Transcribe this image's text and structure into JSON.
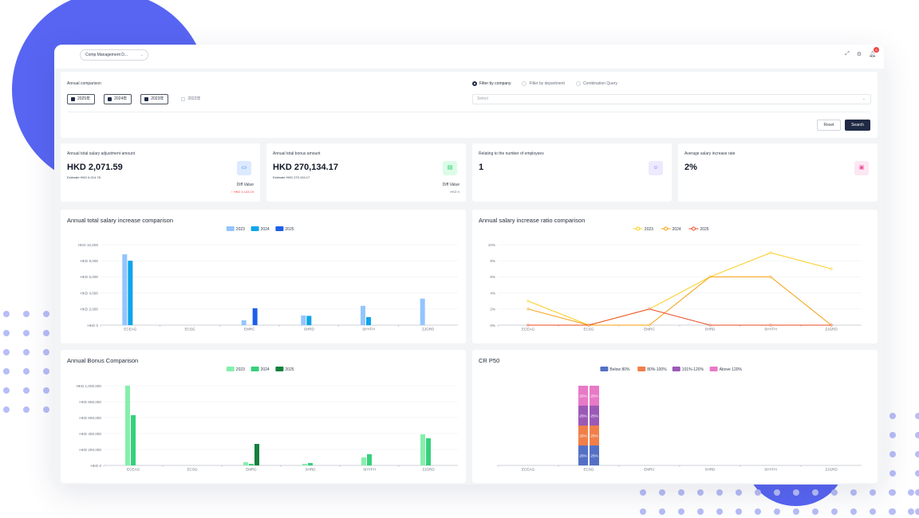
{
  "header": {
    "company_select": "Comp Management D...",
    "notification_count": "6"
  },
  "filter": {
    "annual_label": "Annual comparison",
    "years": [
      {
        "label": "2025年",
        "checked": true
      },
      {
        "label": "2024年",
        "checked": true
      },
      {
        "label": "2023年",
        "checked": true
      },
      {
        "label": "2022年",
        "checked": false
      }
    ],
    "modes": [
      {
        "label": "Filter by company",
        "selected": true
      },
      {
        "label": "Filter by department",
        "selected": false
      },
      {
        "label": "Combination Query",
        "selected": false
      }
    ],
    "select_placeholder": "Select",
    "reset_label": "Reset",
    "search_label": "Search"
  },
  "stats": [
    {
      "label": "Annual total salary adjustment amount",
      "value": "HKD 2,071.59",
      "estimate": "Estimate HKD 6,214.78",
      "diff_label": "Diff Value",
      "diff_value": "↑ HKD 4,143.19",
      "icon": "wallet-icon",
      "icon_bg": "#dbeafe",
      "icon_color": "#3b82f6"
    },
    {
      "label": "Annual total bonus amount",
      "value": "HKD 270,134.17",
      "estimate": "Estimate HKD 270,134.17",
      "diff_label": "Diff Value",
      "diff_value": "HKD 0",
      "icon": "folder-icon",
      "icon_bg": "#dcfce7",
      "icon_color": "#22c55e"
    },
    {
      "label": "Relating to the number of employees",
      "value": "1",
      "icon": "user-icon",
      "icon_bg": "#ede9fe",
      "icon_color": "#8b5cf6"
    },
    {
      "label": "Average salary increase rate",
      "value": "2%",
      "icon": "percent-icon",
      "icon_bg": "#fce7f3",
      "icon_color": "#ec4899"
    }
  ],
  "chart_data": [
    {
      "type": "bar",
      "title": "Annual total salary increase comparison",
      "categories": [
        "ECEAG",
        "ECSG",
        "EMRC",
        "SHRD",
        "SHYFH",
        "ZJGRD"
      ],
      "series": [
        {
          "name": "2023",
          "color": "#93c5fd",
          "values": [
            8800,
            0,
            600,
            1200,
            2400,
            3300
          ]
        },
        {
          "name": "2024",
          "color": "#0ea5e9",
          "values": [
            8000,
            0,
            0,
            1150,
            1000,
            0
          ]
        },
        {
          "name": "2025",
          "color": "#1d5fe8",
          "values": [
            0,
            0,
            2100,
            0,
            0,
            0
          ]
        }
      ],
      "ylim": [
        0,
        10000
      ],
      "yticks": [
        "HKD 0",
        "HKD 2,000",
        "HKD 4,000",
        "HKD 6,000",
        "HKD 8,000",
        "HKD 10,000"
      ],
      "legend": "top-center"
    },
    {
      "type": "line",
      "title": "Annual salary increase ratio comparison",
      "categories": [
        "ECEAG",
        "ECSG",
        "EMRC",
        "SHRD",
        "SHYFH",
        "ZJGRD"
      ],
      "series": [
        {
          "name": "2023",
          "color": "#facc15",
          "values": [
            3,
            0,
            2,
            6,
            9,
            7
          ]
        },
        {
          "name": "2024",
          "color": "#f59e0b",
          "values": [
            2,
            0,
            0,
            6,
            6,
            0
          ]
        },
        {
          "name": "2025",
          "color": "#ea4a1f",
          "values": [
            0,
            0,
            2,
            0,
            0,
            0
          ]
        }
      ],
      "ylim": [
        0,
        10
      ],
      "yticks": [
        "0%",
        "2%",
        "4%",
        "6%",
        "8%",
        "10%"
      ],
      "legend": "top-center"
    },
    {
      "type": "bar",
      "title": "Annual Bonus Comparison",
      "categories": [
        "ECEAG",
        "ECSG",
        "EMRC",
        "SHRD",
        "SHYFH",
        "ZJGRD"
      ],
      "series": [
        {
          "name": "2023",
          "color": "#86efac",
          "values": [
            1000000,
            0,
            40000,
            20000,
            100000,
            390000
          ]
        },
        {
          "name": "2024",
          "color": "#34d17b",
          "values": [
            630000,
            0,
            20000,
            30000,
            140000,
            340000
          ]
        },
        {
          "name": "2025",
          "color": "#15803d",
          "values": [
            0,
            0,
            270000,
            0,
            0,
            0
          ]
        }
      ],
      "ylim": [
        0,
        1000000
      ],
      "yticks": [
        "HKD 0",
        "HKD 200,000",
        "HKD 400,000",
        "HKD 600,000",
        "HKD 800,000",
        "HKD 1,000,000"
      ],
      "legend": "top-center"
    },
    {
      "type": "bar",
      "stacked": true,
      "title": "CR P50",
      "categories": [
        "ECEAG",
        "ECSG",
        "EMRC",
        "SHRD",
        "SHYFH",
        "ZJGRD"
      ],
      "series": [
        {
          "name": "Below 80%",
          "color": "#5470c6",
          "values": [
            0,
            25,
            0,
            0,
            0,
            0
          ]
        },
        {
          "name": "80%-100%",
          "color": "#f07f4a",
          "values": [
            0,
            25,
            0,
            0,
            0,
            0
          ]
        },
        {
          "name": "101%-120%",
          "color": "#9b59b6",
          "values": [
            0,
            25,
            0,
            0,
            0,
            0
          ]
        },
        {
          "name": "Above 120%",
          "color": "#e879c6",
          "values": [
            0,
            25,
            0,
            0,
            0,
            0
          ]
        }
      ],
      "series_b": [
        25,
        25,
        25,
        25
      ],
      "segment_label": "25%",
      "ylim": [
        0,
        100
      ],
      "legend": "top-center"
    }
  ]
}
